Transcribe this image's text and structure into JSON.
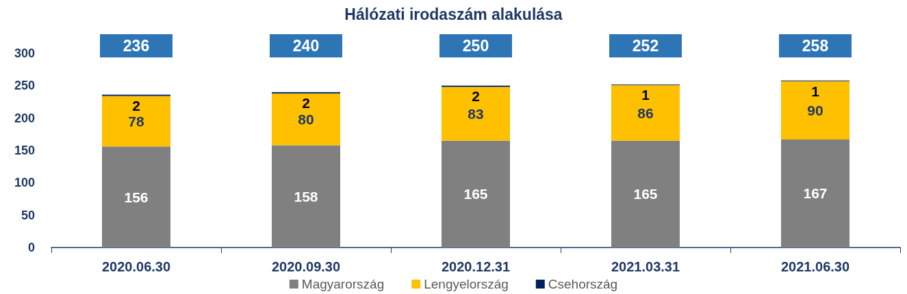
{
  "chart_data": {
    "type": "bar",
    "title": "Hálózati irodaszám alakulása",
    "categories": [
      "2020.06.30",
      "2020.09.30",
      "2020.12.31",
      "2021.03.31",
      "2021.06.30"
    ],
    "series": [
      {
        "name": "Magyarország",
        "color": "#808080",
        "values": [
          156,
          158,
          165,
          165,
          167
        ]
      },
      {
        "name": "Lengyelország",
        "color": "#ffc000",
        "values": [
          78,
          80,
          83,
          86,
          90
        ]
      },
      {
        "name": "Csehország",
        "color": "#002060",
        "values": [
          2,
          2,
          2,
          1,
          1
        ]
      }
    ],
    "stacked": true,
    "data_labels": true,
    "totals": [
      "236",
      "240",
      "250",
      "252",
      "258"
    ],
    "ylim": [
      0,
      300
    ],
    "yticks": [
      0,
      50,
      100,
      150,
      200,
      250,
      300
    ],
    "grid": false,
    "legend": "bottom"
  }
}
